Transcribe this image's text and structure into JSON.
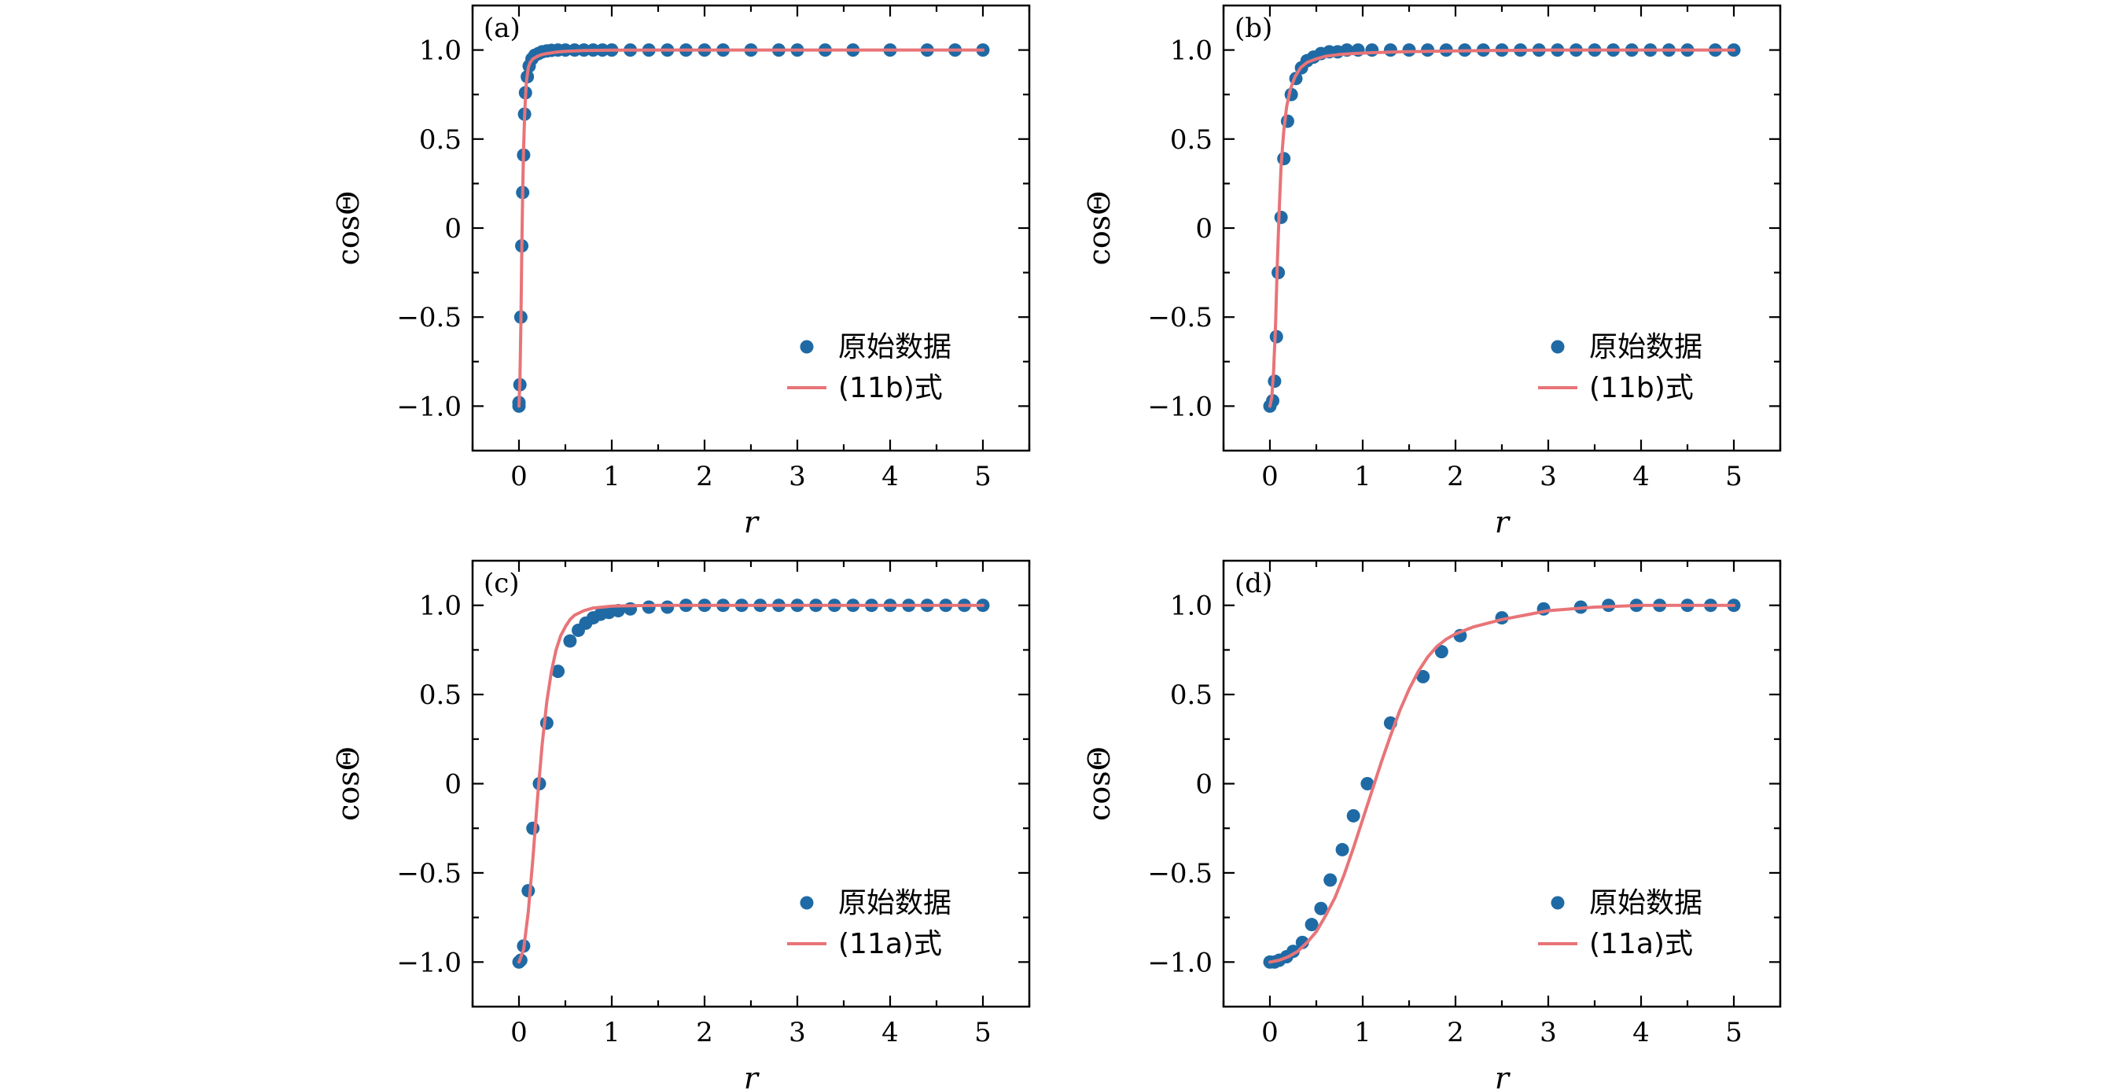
{
  "colors": {
    "points": "#1f6aa5",
    "fit": "#e87478",
    "axis": "#000000",
    "background": "#ffffff"
  },
  "chart_data": [
    {
      "type": "scatter",
      "panel_label": "(a)",
      "xlabel": "r",
      "ylabel": "cosΘ",
      "xlim": [
        -0.5,
        5.5
      ],
      "ylim": [
        -1.25,
        1.25
      ],
      "xticks": [
        0,
        1,
        2,
        3,
        4,
        5
      ],
      "xtick_labels": [
        "0",
        "1",
        "2",
        "3",
        "4",
        "5"
      ],
      "yticks": [
        -1.0,
        -0.5,
        0,
        0.5,
        1.0
      ],
      "ytick_labels": [
        "−1.0",
        "−0.5",
        "0",
        "0.5",
        "1.0"
      ],
      "grid": false,
      "legend_position": "bottom-right",
      "series": [
        {
          "name": "原始数据",
          "kind": "points",
          "x": [
            0.0,
            0.0,
            0.01,
            0.02,
            0.03,
            0.04,
            0.05,
            0.06,
            0.07,
            0.09,
            0.11,
            0.14,
            0.17,
            0.21,
            0.25,
            0.3,
            0.35,
            0.42,
            0.5,
            0.6,
            0.7,
            0.8,
            0.9,
            1.0,
            1.2,
            1.4,
            1.6,
            1.8,
            2.0,
            2.2,
            2.5,
            2.8,
            3.0,
            3.3,
            3.6,
            4.0,
            4.4,
            4.7,
            5.0
          ],
          "y": [
            -1.0,
            -0.98,
            -0.88,
            -0.5,
            -0.1,
            0.2,
            0.41,
            0.64,
            0.76,
            0.85,
            0.91,
            0.95,
            0.97,
            0.98,
            0.99,
            0.995,
            0.998,
            1.0,
            1.0,
            1.0,
            1.0,
            1.0,
            1.0,
            1.0,
            1.0,
            1.0,
            1.0,
            1.0,
            1.0,
            1.0,
            1.0,
            1.0,
            1.0,
            1.0,
            1.0,
            1.0,
            1.0,
            1.0,
            1.0
          ]
        },
        {
          "name": "(11b)式",
          "kind": "line",
          "x": [
            0.0,
            0.01,
            0.02,
            0.03,
            0.04,
            0.05,
            0.06,
            0.07,
            0.08,
            0.1,
            0.12,
            0.15,
            0.2,
            0.25,
            0.3,
            0.4,
            0.5,
            0.7,
            1.0,
            1.5,
            2.0,
            3.0,
            4.0,
            5.0
          ],
          "y": [
            -1.0,
            -0.85,
            -0.55,
            -0.15,
            0.2,
            0.45,
            0.62,
            0.74,
            0.82,
            0.9,
            0.93,
            0.95,
            0.965,
            0.975,
            0.98,
            0.988,
            0.993,
            0.997,
            0.999,
            1.0,
            1.0,
            1.0,
            1.0,
            1.0
          ]
        }
      ]
    },
    {
      "type": "scatter",
      "panel_label": "(b)",
      "xlabel": "r",
      "ylabel": "cosΘ",
      "xlim": [
        -0.5,
        5.5
      ],
      "ylim": [
        -1.25,
        1.25
      ],
      "xticks": [
        0,
        1,
        2,
        3,
        4,
        5
      ],
      "xtick_labels": [
        "0",
        "1",
        "2",
        "3",
        "4",
        "5"
      ],
      "yticks": [
        -1.0,
        -0.5,
        0,
        0.5,
        1.0
      ],
      "ytick_labels": [
        "−1.0",
        "−0.5",
        "0",
        "0.5",
        "1.0"
      ],
      "grid": false,
      "legend_position": "bottom-right",
      "series": [
        {
          "name": "原始数据",
          "kind": "points",
          "x": [
            0.0,
            0.03,
            0.05,
            0.07,
            0.09,
            0.12,
            0.15,
            0.19,
            0.23,
            0.28,
            0.34,
            0.4,
            0.47,
            0.55,
            0.64,
            0.73,
            0.83,
            0.95,
            1.1,
            1.3,
            1.5,
            1.7,
            1.9,
            2.1,
            2.3,
            2.5,
            2.7,
            2.9,
            3.1,
            3.3,
            3.5,
            3.7,
            3.9,
            4.1,
            4.3,
            4.5,
            4.8,
            5.0
          ],
          "y": [
            -1.0,
            -0.97,
            -0.86,
            -0.61,
            -0.25,
            0.06,
            0.39,
            0.6,
            0.75,
            0.84,
            0.9,
            0.94,
            0.96,
            0.98,
            0.99,
            0.99,
            1.0,
            1.0,
            1.0,
            1.0,
            1.0,
            1.0,
            1.0,
            1.0,
            1.0,
            1.0,
            1.0,
            1.0,
            1.0,
            1.0,
            1.0,
            1.0,
            1.0,
            1.0,
            1.0,
            1.0,
            1.0,
            1.0
          ]
        },
        {
          "name": "(11b)式",
          "kind": "line",
          "x": [
            0.0,
            0.02,
            0.04,
            0.06,
            0.08,
            0.1,
            0.12,
            0.15,
            0.18,
            0.22,
            0.27,
            0.33,
            0.4,
            0.5,
            0.6,
            0.75,
            0.9,
            1.1,
            1.4,
            2.0,
            3.0,
            4.0,
            5.0
          ],
          "y": [
            -1.0,
            -0.95,
            -0.8,
            -0.55,
            -0.2,
            0.1,
            0.35,
            0.55,
            0.68,
            0.78,
            0.85,
            0.9,
            0.93,
            0.95,
            0.965,
            0.975,
            0.98,
            0.985,
            0.99,
            0.995,
            1.0,
            1.0,
            1.0
          ]
        }
      ]
    },
    {
      "type": "scatter",
      "panel_label": "(c)",
      "xlabel": "r",
      "ylabel": "cosΘ",
      "xlim": [
        -0.5,
        5.5
      ],
      "ylim": [
        -1.25,
        1.25
      ],
      "xticks": [
        0,
        1,
        2,
        3,
        4,
        5
      ],
      "xtick_labels": [
        "0",
        "1",
        "2",
        "3",
        "4",
        "5"
      ],
      "yticks": [
        -1.0,
        -0.5,
        0,
        0.5,
        1.0
      ],
      "ytick_labels": [
        "−1.0",
        "−0.5",
        "0",
        "0.5",
        "1.0"
      ],
      "grid": false,
      "legend_position": "bottom-right",
      "series": [
        {
          "name": "原始数据",
          "kind": "points",
          "x": [
            0.0,
            0.02,
            0.05,
            0.1,
            0.15,
            0.22,
            0.3,
            0.42,
            0.55,
            0.64,
            0.72,
            0.8,
            0.88,
            0.97,
            1.07,
            1.2,
            1.4,
            1.6,
            1.8,
            2.0,
            2.2,
            2.4,
            2.6,
            2.8,
            3.0,
            3.2,
            3.4,
            3.6,
            3.8,
            4.0,
            4.2,
            4.4,
            4.6,
            4.8,
            5.0
          ],
          "y": [
            -1.0,
            -0.99,
            -0.91,
            -0.6,
            -0.25,
            0.0,
            0.34,
            0.63,
            0.8,
            0.86,
            0.9,
            0.93,
            0.95,
            0.96,
            0.97,
            0.98,
            0.99,
            0.99,
            1.0,
            1.0,
            1.0,
            1.0,
            1.0,
            1.0,
            1.0,
            1.0,
            1.0,
            1.0,
            1.0,
            1.0,
            1.0,
            1.0,
            1.0,
            1.0,
            1.0
          ]
        },
        {
          "name": "(11a)式",
          "kind": "line",
          "x": [
            0.0,
            0.05,
            0.1,
            0.15,
            0.2,
            0.25,
            0.3,
            0.35,
            0.4,
            0.45,
            0.5,
            0.55,
            0.6,
            0.7,
            0.8,
            0.9,
            1.0,
            1.2,
            1.5,
            2.0,
            3.0,
            4.0,
            5.0
          ],
          "y": [
            -1.0,
            -0.93,
            -0.72,
            -0.42,
            -0.08,
            0.22,
            0.46,
            0.63,
            0.75,
            0.83,
            0.88,
            0.92,
            0.945,
            0.97,
            0.985,
            0.99,
            0.995,
            0.998,
            1.0,
            1.0,
            1.0,
            1.0,
            1.0
          ]
        }
      ]
    },
    {
      "type": "scatter",
      "panel_label": "(d)",
      "xlabel": "r",
      "ylabel": "cosΘ",
      "xlim": [
        -0.5,
        5.5
      ],
      "ylim": [
        -1.25,
        1.25
      ],
      "xticks": [
        0,
        1,
        2,
        3,
        4,
        5
      ],
      "xtick_labels": [
        "0",
        "1",
        "2",
        "3",
        "4",
        "5"
      ],
      "yticks": [
        -1.0,
        -0.5,
        0,
        0.5,
        1.0
      ],
      "ytick_labels": [
        "−1.0",
        "−0.5",
        "0",
        "0.5",
        "1.0"
      ],
      "grid": false,
      "legend_position": "bottom-right",
      "series": [
        {
          "name": "原始数据",
          "kind": "points",
          "x": [
            0.0,
            0.05,
            0.1,
            0.18,
            0.25,
            0.35,
            0.45,
            0.55,
            0.65,
            0.78,
            0.9,
            1.05,
            1.3,
            1.65,
            1.85,
            2.05,
            2.5,
            2.95,
            3.35,
            3.65,
            3.95,
            4.2,
            4.5,
            4.75,
            5.0
          ],
          "y": [
            -1.0,
            -1.0,
            -0.99,
            -0.97,
            -0.94,
            -0.89,
            -0.79,
            -0.7,
            -0.54,
            -0.37,
            -0.18,
            0.0,
            0.34,
            0.6,
            0.74,
            0.83,
            0.93,
            0.98,
            0.99,
            1.0,
            1.0,
            1.0,
            1.0,
            1.0,
            1.0
          ]
        },
        {
          "name": "(11a)式",
          "kind": "line",
          "x": [
            0.0,
            0.1,
            0.2,
            0.3,
            0.4,
            0.5,
            0.6,
            0.7,
            0.8,
            0.9,
            1.0,
            1.1,
            1.2,
            1.3,
            1.4,
            1.5,
            1.6,
            1.7,
            1.8,
            1.9,
            2.0,
            2.2,
            2.5,
            2.8,
            3.0,
            3.5,
            4.0,
            4.5,
            5.0
          ],
          "y": [
            -1.0,
            -0.99,
            -0.97,
            -0.94,
            -0.89,
            -0.83,
            -0.74,
            -0.64,
            -0.51,
            -0.36,
            -0.2,
            -0.04,
            0.12,
            0.27,
            0.41,
            0.53,
            0.63,
            0.71,
            0.77,
            0.81,
            0.84,
            0.88,
            0.92,
            0.95,
            0.97,
            0.99,
            1.0,
            1.0,
            1.0
          ]
        }
      ]
    }
  ]
}
